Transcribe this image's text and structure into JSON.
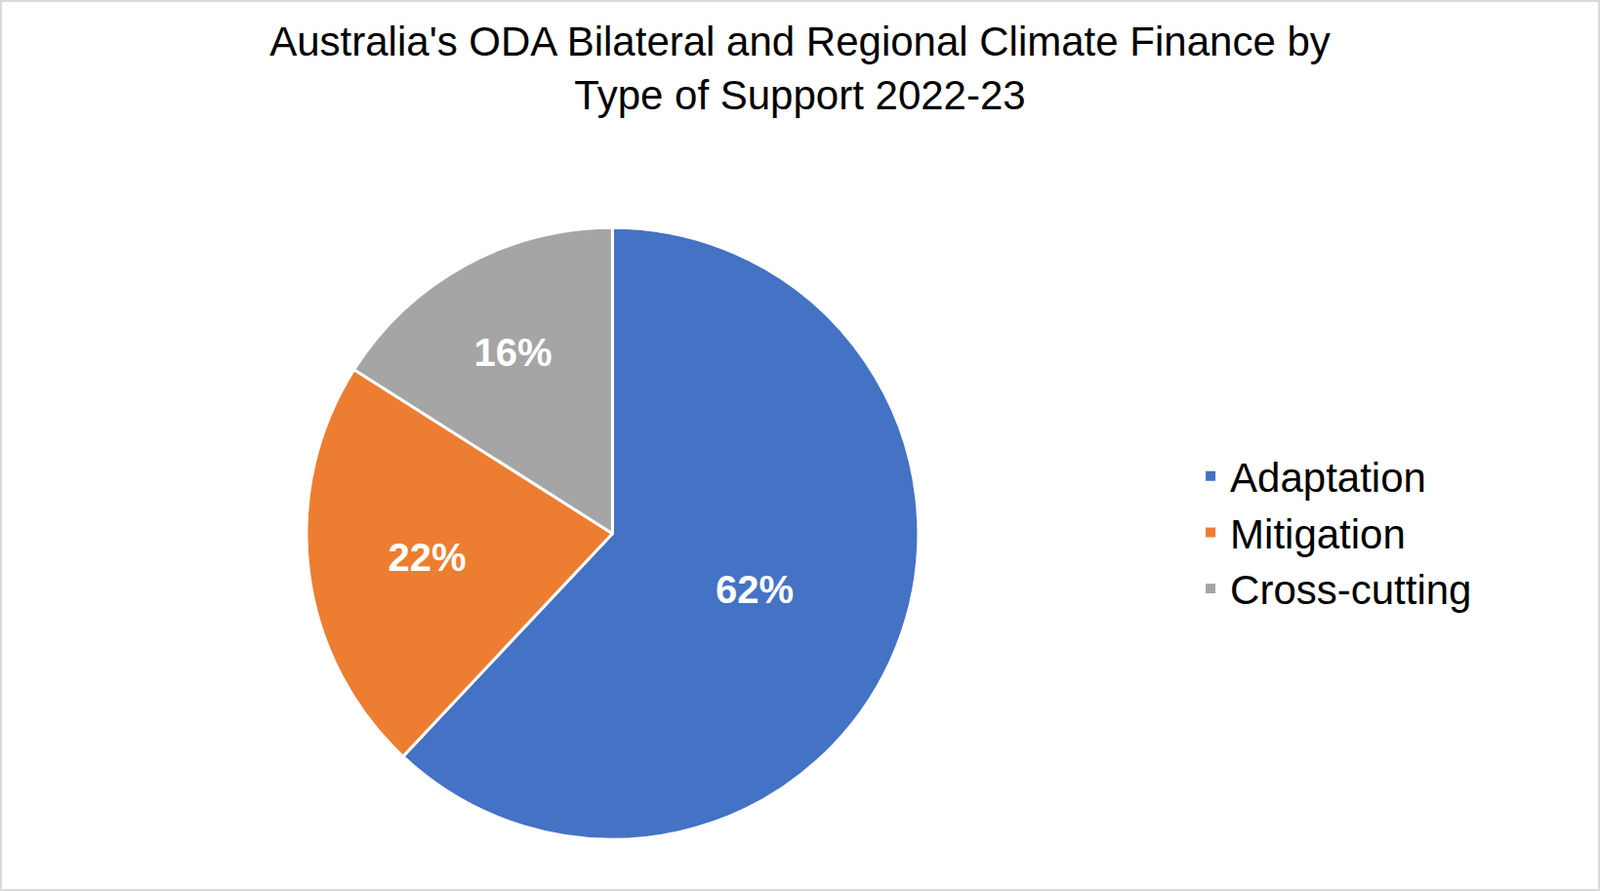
{
  "chart_data": {
    "type": "pie",
    "title": "Australia's ODA Bilateral and Regional Climate Finance by Type of Support 2022-23",
    "categories": [
      "Adaptation",
      "Mitigation",
      "Cross-cutting"
    ],
    "values": [
      62,
      22,
      16
    ],
    "value_labels": [
      "62%",
      "22%",
      "16%"
    ],
    "colors": [
      "#4472c4",
      "#ed7d31",
      "#a5a5a5"
    ],
    "data_labels": true,
    "legend": "right"
  }
}
